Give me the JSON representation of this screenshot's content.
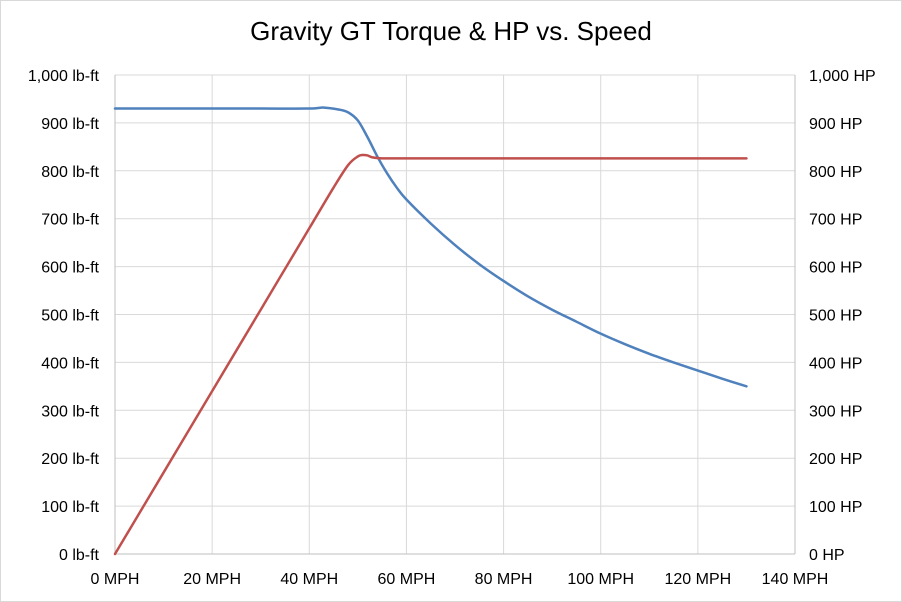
{
  "chart_data": {
    "type": "line",
    "title": "Gravity GT Torque & HP vs. Speed",
    "xlabel": "",
    "ylabel": "",
    "y2label": "",
    "xlim": [
      0,
      140
    ],
    "ylim": [
      0,
      1000
    ],
    "y2lim": [
      0,
      1000
    ],
    "grid": true,
    "legend": "none",
    "x_ticks": [
      "0 MPH",
      "20 MPH",
      "40 MPH",
      "60 MPH",
      "80 MPH",
      "100 MPH",
      "120 MPH",
      "140 MPH"
    ],
    "y_ticks_left": [
      "0 lb-ft",
      "100 lb-ft",
      "200 lb-ft",
      "300 lb-ft",
      "400 lb-ft",
      "500 lb-ft",
      "600 lb-ft",
      "700 lb-ft",
      "800 lb-ft",
      "900 lb-ft",
      "1,000 lb-ft"
    ],
    "y_ticks_right": [
      "0 HP",
      "100 HP",
      "200 HP",
      "300 HP",
      "400 HP",
      "500 HP",
      "600 HP",
      "700 HP",
      "800 HP",
      "900 HP",
      "1,000 HP"
    ],
    "series": [
      {
        "axis": "left",
        "color": "#4f81bd",
        "x": [
          0,
          10,
          20,
          30,
          40,
          43,
          46,
          48,
          50,
          52,
          54,
          56,
          58,
          60,
          65,
          70,
          75,
          80,
          85,
          90,
          95,
          100,
          105,
          110,
          115,
          120,
          125,
          130
        ],
        "values": [
          930,
          930,
          930,
          930,
          930,
          932,
          928,
          922,
          905,
          870,
          830,
          795,
          765,
          740,
          690,
          645,
          605,
          570,
          538,
          510,
          485,
          460,
          438,
          418,
          400,
          383,
          366,
          350
        ]
      },
      {
        "axis": "right",
        "color": "#c0504d",
        "x": [
          0,
          10,
          20,
          30,
          40,
          45,
          48,
          50,
          51,
          52,
          53,
          55,
          60,
          70,
          80,
          90,
          100,
          110,
          120,
          130
        ],
        "values": [
          0,
          170,
          340,
          510,
          680,
          765,
          812,
          830,
          833,
          832,
          828,
          826,
          826,
          826,
          826,
          826,
          826,
          826,
          826,
          826
        ]
      }
    ]
  }
}
